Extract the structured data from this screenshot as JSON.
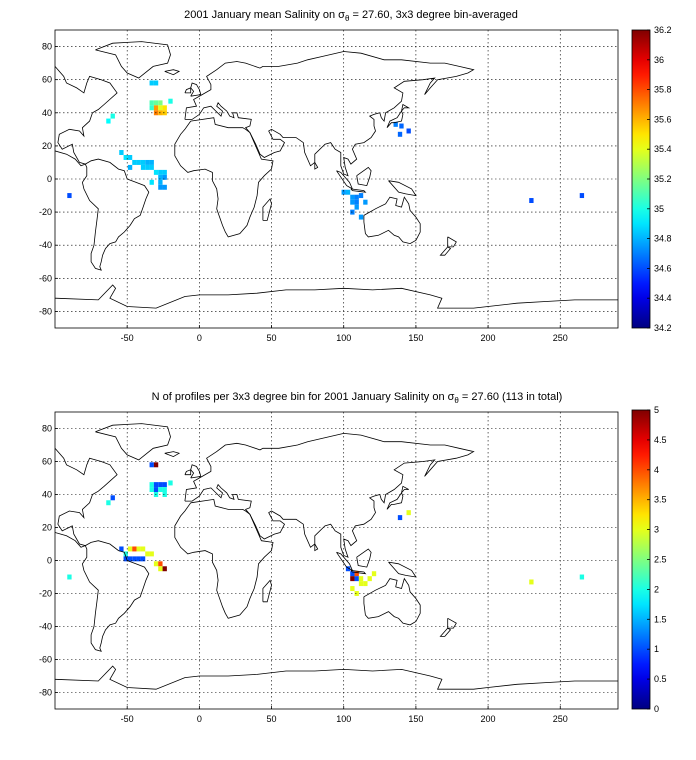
{
  "charts": [
    {
      "id": "top",
      "title_pre": "2001 January mean Salinity on σ",
      "title_sub": "θ",
      "title_post": " = 27.60, 3x3 degree bin-averaged",
      "colorbar": {
        "min": 34.2,
        "max": 36.2,
        "ticks": [
          "34.2",
          "34.4",
          "34.6",
          "34.8",
          "35",
          "35.2",
          "35.4",
          "35.6",
          "35.8",
          "36",
          "36.2"
        ]
      }
    },
    {
      "id": "bottom",
      "title_pre": "N of profiles per 3x3 degree bin for 2001 January Salinity on σ",
      "title_sub": "θ",
      "title_post": " = 27.60 (113 in total)",
      "colorbar": {
        "min": 0,
        "max": 5,
        "ticks": [
          "0",
          "0.5",
          "1",
          "1.5",
          "2",
          "2.5",
          "3",
          "3.5",
          "4",
          "4.5",
          "5"
        ]
      }
    }
  ],
  "chart_data": [
    {
      "type": "heatmap",
      "title": "2001 January mean Salinity on σθ = 27.60, 3x3 degree bin-averaged",
      "xlim": [
        -100,
        290
      ],
      "ylim": [
        -90,
        90
      ],
      "xticks": [
        "-50",
        "0",
        "50",
        "100",
        "150",
        "200",
        "250"
      ],
      "yticks": [
        "-80",
        "-60",
        "-40",
        "-20",
        "0",
        "20",
        "40",
        "60",
        "80"
      ],
      "grid": true,
      "colormap": "jet",
      "clim": [
        34.2,
        36.2
      ],
      "bins": [
        [
          -90,
          -10,
          34.6
        ],
        [
          -63,
          35,
          34.95
        ],
        [
          -60,
          38,
          35.0
        ],
        [
          -33,
          58,
          34.85
        ],
        [
          -30,
          58,
          34.85
        ],
        [
          -33,
          46,
          35.1
        ],
        [
          -30,
          46,
          35.15
        ],
        [
          -27,
          46,
          35.2
        ],
        [
          -33,
          43,
          35.05
        ],
        [
          -30,
          43,
          35.65
        ],
        [
          -27,
          43,
          35.4
        ],
        [
          -24,
          43,
          35.5
        ],
        [
          -30,
          40,
          35.7
        ],
        [
          -27,
          40,
          35.6
        ],
        [
          -24,
          40,
          35.55
        ],
        [
          -20,
          47,
          35.0
        ],
        [
          -54,
          16,
          34.85
        ],
        [
          -51,
          13,
          34.9
        ],
        [
          -48,
          13,
          34.85
        ],
        [
          -45,
          10,
          34.85
        ],
        [
          -42,
          10,
          34.85
        ],
        [
          -39,
          10,
          34.85
        ],
        [
          -36,
          10,
          34.8
        ],
        [
          -33,
          10,
          34.8
        ],
        [
          -39,
          7,
          34.85
        ],
        [
          -36,
          7,
          34.85
        ],
        [
          -33,
          7,
          34.85
        ],
        [
          -48,
          7,
          34.8
        ],
        [
          -30,
          4,
          34.9
        ],
        [
          -27,
          4,
          34.85
        ],
        [
          -24,
          4,
          34.85
        ],
        [
          -27,
          1,
          34.8
        ],
        [
          -24,
          1,
          34.75
        ],
        [
          -27,
          -2,
          34.8
        ],
        [
          -33,
          -2,
          34.9
        ],
        [
          -27,
          -5,
          34.75
        ],
        [
          -24,
          -5,
          34.75
        ],
        [
          100,
          -8,
          34.75
        ],
        [
          103,
          -8,
          34.8
        ],
        [
          106,
          -11,
          34.75
        ],
        [
          109,
          -11,
          34.7
        ],
        [
          106,
          -14,
          34.75
        ],
        [
          109,
          -14,
          34.7
        ],
        [
          109,
          -17,
          34.75
        ],
        [
          106,
          -20,
          34.7
        ],
        [
          112,
          -10,
          34.7
        ],
        [
          115,
          -14,
          34.75
        ],
        [
          112,
          -23,
          34.75
        ],
        [
          136,
          33,
          34.7
        ],
        [
          140,
          32,
          34.65
        ],
        [
          139,
          27,
          34.65
        ],
        [
          145,
          29,
          34.6
        ],
        [
          230,
          -13,
          34.6
        ],
        [
          265,
          -10,
          34.6
        ]
      ]
    },
    {
      "type": "heatmap",
      "title": "N of profiles per 3x3 degree bin for 2001 January Salinity on σθ = 27.60 (113 in total)",
      "xlim": [
        -100,
        290
      ],
      "ylim": [
        -90,
        90
      ],
      "xticks": [
        "-50",
        "0",
        "50",
        "100",
        "150",
        "200",
        "250"
      ],
      "yticks": [
        "-80",
        "-60",
        "-40",
        "-20",
        "0",
        "20",
        "40",
        "60",
        "80"
      ],
      "grid": true,
      "colormap": "jet",
      "clim": [
        0,
        5
      ],
      "total": 113,
      "bins": [
        [
          -90,
          -10,
          2
        ],
        [
          -63,
          35,
          2
        ],
        [
          -60,
          38,
          1
        ],
        [
          -33,
          58,
          1
        ],
        [
          -30,
          58,
          5
        ],
        [
          -33,
          46,
          2
        ],
        [
          -30,
          46,
          1
        ],
        [
          -27,
          46,
          1
        ],
        [
          -24,
          46,
          1
        ],
        [
          -33,
          43,
          2
        ],
        [
          -30,
          43,
          1
        ],
        [
          -27,
          43,
          2
        ],
        [
          -24,
          43,
          2
        ],
        [
          -30,
          40,
          2
        ],
        [
          -24,
          40,
          2
        ],
        [
          -20,
          47,
          2
        ],
        [
          -54,
          7,
          1
        ],
        [
          -51,
          4,
          2
        ],
        [
          -48,
          7,
          3
        ],
        [
          -45,
          7,
          4
        ],
        [
          -42,
          7,
          3
        ],
        [
          -39,
          7,
          3
        ],
        [
          -36,
          4,
          3
        ],
        [
          -33,
          4,
          3
        ],
        [
          -51,
          1,
          1
        ],
        [
          -48,
          1,
          1
        ],
        [
          -45,
          1,
          1
        ],
        [
          -42,
          1,
          1
        ],
        [
          -39,
          1,
          1
        ],
        [
          -30,
          -2,
          3
        ],
        [
          -27,
          -2,
          4
        ],
        [
          -24,
          -5,
          5
        ],
        [
          -27,
          -5,
          3
        ],
        [
          103,
          -5,
          1
        ],
        [
          106,
          -8,
          1
        ],
        [
          109,
          -8,
          4
        ],
        [
          106,
          -11,
          5
        ],
        [
          109,
          -11,
          1
        ],
        [
          112,
          -11,
          3
        ],
        [
          106,
          -17,
          3
        ],
        [
          109,
          -20,
          3
        ],
        [
          112,
          -14,
          3
        ],
        [
          115,
          -14,
          3
        ],
        [
          118,
          -11,
          3
        ],
        [
          121,
          -8,
          3
        ],
        [
          139,
          26,
          1
        ],
        [
          145,
          29,
          3
        ],
        [
          230,
          -13,
          3
        ],
        [
          265,
          -10,
          2
        ]
      ]
    }
  ]
}
